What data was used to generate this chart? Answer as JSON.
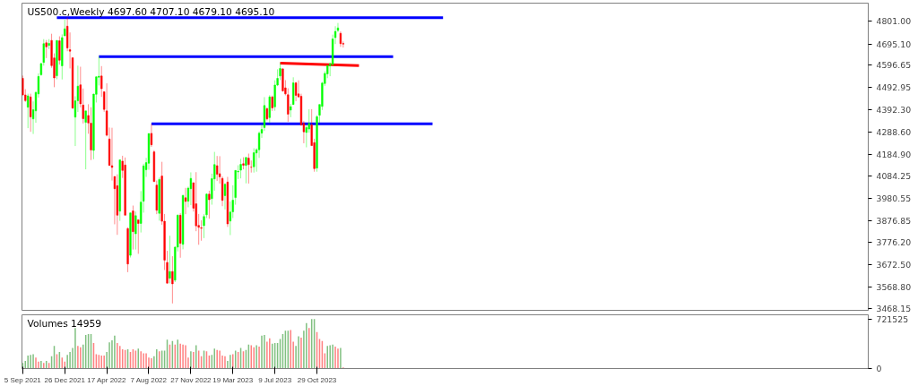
{
  "chart_data": [
    {
      "type": "candlestick",
      "title": "US500.c,Weekly  4697.60 4707.10 4679.10 4695.10",
      "tick_labels": "y",
      "x": [
        "2021-09-05",
        "2021-09-12",
        "2021-09-19",
        "2021-09-26",
        "2021-10-03",
        "2021-10-10",
        "2021-10-17",
        "2021-10-24",
        "2021-10-31",
        "2021-11-07",
        "2021-11-14",
        "2021-11-21",
        "2021-11-28",
        "2021-12-05",
        "2021-12-12",
        "2021-12-19",
        "2021-12-26",
        "2022-01-02",
        "2022-01-09",
        "2022-01-16",
        "2022-01-23",
        "2022-01-30",
        "2022-02-06",
        "2022-02-13",
        "2022-02-20",
        "2022-02-27",
        "2022-03-06",
        "2022-03-13",
        "2022-03-20",
        "2022-03-27",
        "2022-04-03",
        "2022-04-10",
        "2022-04-17",
        "2022-04-24",
        "2022-05-01",
        "2022-05-08",
        "2022-05-15",
        "2022-05-22",
        "2022-05-29",
        "2022-06-05",
        "2022-06-12",
        "2022-06-19",
        "2022-06-26",
        "2022-07-03",
        "2022-07-10",
        "2022-07-17",
        "2022-07-24",
        "2022-07-31",
        "2022-08-07",
        "2022-08-14",
        "2022-08-21",
        "2022-08-28",
        "2022-09-04",
        "2022-09-11",
        "2022-09-18",
        "2022-09-25",
        "2022-10-02",
        "2022-10-09",
        "2022-10-16",
        "2022-10-23",
        "2022-10-30",
        "2022-11-06",
        "2022-11-13",
        "2022-11-20",
        "2022-11-27",
        "2022-12-04",
        "2022-12-11",
        "2022-12-18",
        "2022-12-25",
        "2023-01-01",
        "2023-01-08",
        "2023-01-15",
        "2023-01-22",
        "2023-01-29",
        "2023-02-05",
        "2023-02-12",
        "2023-02-19",
        "2023-02-26",
        "2023-03-05",
        "2023-03-12",
        "2023-03-19",
        "2023-03-26",
        "2023-04-02",
        "2023-04-09",
        "2023-04-16",
        "2023-04-23",
        "2023-04-30",
        "2023-05-07",
        "2023-05-14",
        "2023-05-21",
        "2023-05-28",
        "2023-06-04",
        "2023-06-11",
        "2023-06-18",
        "2023-06-25",
        "2023-07-02",
        "2023-07-09",
        "2023-07-16",
        "2023-07-23",
        "2023-07-30",
        "2023-08-06",
        "2023-08-13",
        "2023-08-20",
        "2023-08-27",
        "2023-09-03",
        "2023-09-10",
        "2023-09-17",
        "2023-09-24",
        "2023-10-01",
        "2023-10-08",
        "2023-10-15",
        "2023-10-22",
        "2023-10-29",
        "2023-11-05",
        "2023-11-12",
        "2023-11-19",
        "2023-11-26",
        "2023-12-03",
        "2023-12-10",
        "2023-12-17",
        "2023-12-24",
        "2023-12-31",
        "2024-01-07"
      ],
      "ohlc": [
        [
          4536,
          4549,
          4457,
          4459
        ],
        [
          4459,
          4486,
          4427,
          4433
        ],
        [
          4402,
          4465,
          4305,
          4455
        ],
        [
          4450,
          4465,
          4288,
          4357
        ],
        [
          4348,
          4429,
          4278,
          4391
        ],
        [
          4385,
          4475,
          4330,
          4471
        ],
        [
          4464,
          4559,
          4447,
          4545
        ],
        [
          4553,
          4608,
          4548,
          4605
        ],
        [
          4610,
          4718,
          4595,
          4697
        ],
        [
          4701,
          4714,
          4630,
          4682
        ],
        [
          4689,
          4718,
          4672,
          4698
        ],
        [
          4712,
          4743,
          4585,
          4595
        ],
        [
          4631,
          4652,
          4495,
          4538
        ],
        [
          4548,
          4713,
          4532,
          4712
        ],
        [
          4710,
          4731,
          4600,
          4620
        ],
        [
          4594,
          4740,
          4531,
          4725
        ],
        [
          4733,
          4808,
          4733,
          4766
        ],
        [
          4778,
          4818,
          4662,
          4677
        ],
        [
          4669,
          4749,
          4582,
          4662
        ],
        [
          4632,
          4632,
          4395,
          4398
        ],
        [
          4356,
          4453,
          4222,
          4432
        ],
        [
          4432,
          4595,
          4380,
          4500
        ],
        [
          4506,
          4590,
          4401,
          4418
        ],
        [
          4412,
          4489,
          4327,
          4349
        ],
        [
          4332,
          4385,
          4114,
          4385
        ],
        [
          4364,
          4416,
          4279,
          4329
        ],
        [
          4328,
          4402,
          4157,
          4204
        ],
        [
          4202,
          4465,
          4161,
          4463
        ],
        [
          4462,
          4546,
          4424,
          4543
        ],
        [
          4541,
          4637,
          4503,
          4546
        ],
        [
          4547,
          4593,
          4450,
          4488
        ],
        [
          4474,
          4475,
          4381,
          4392
        ],
        [
          4385,
          4513,
          4267,
          4272
        ],
        [
          4255,
          4308,
          4132,
          4132
        ],
        [
          4131,
          4307,
          4062,
          4123
        ],
        [
          4081,
          4081,
          3859,
          4024
        ],
        [
          4038,
          4091,
          3810,
          3901
        ],
        [
          3920,
          4159,
          3875,
          4158
        ],
        [
          4152,
          4177,
          4074,
          4109
        ],
        [
          4134,
          4169,
          3901,
          3901
        ],
        [
          3839,
          3845,
          3637,
          3675
        ],
        [
          3715,
          3913,
          3705,
          3912
        ],
        [
          3921,
          3946,
          3742,
          3825
        ],
        [
          3815,
          3918,
          3742,
          3899
        ],
        [
          3880,
          3880,
          3722,
          3863
        ],
        [
          3863,
          4013,
          3821,
          3962
        ],
        [
          3966,
          4140,
          3913,
          4130
        ],
        [
          4112,
          4167,
          4079,
          4145
        ],
        [
          4142,
          4280,
          4112,
          4280
        ],
        [
          4281,
          4325,
          4218,
          4228
        ],
        [
          4195,
          4203,
          4057,
          4057
        ],
        [
          4041,
          4062,
          3906,
          3924
        ],
        [
          3910,
          4076,
          3876,
          4067
        ],
        [
          4083,
          4149,
          3857,
          3873
        ],
        [
          3873,
          3907,
          3647,
          3693
        ],
        [
          3682,
          3736,
          3584,
          3586
        ],
        [
          3609,
          3806,
          3585,
          3640
        ],
        [
          3640,
          3711,
          3492,
          3583
        ],
        [
          3600,
          3758,
          3591,
          3753
        ],
        [
          3753,
          3905,
          3733,
          3901
        ],
        [
          3901,
          3911,
          3704,
          3771
        ],
        [
          3766,
          3996,
          3743,
          3993
        ],
        [
          3982,
          4028,
          3906,
          3965
        ],
        [
          3966,
          4034,
          3938,
          4027
        ],
        [
          4024,
          4100,
          3948,
          4072
        ],
        [
          4052,
          4052,
          3918,
          3934
        ],
        [
          3954,
          4101,
          3827,
          3852
        ],
        [
          3854,
          3907,
          3764,
          3845
        ],
        [
          3843,
          3878,
          3783,
          3840
        ],
        [
          3853,
          3906,
          3795,
          3895
        ],
        [
          3903,
          4003,
          3888,
          3999
        ],
        [
          3999,
          4015,
          3885,
          3973
        ],
        [
          3978,
          4094,
          3950,
          4071
        ],
        [
          4070,
          4195,
          4015,
          4136
        ],
        [
          4131,
          4176,
          4060,
          4091
        ],
        [
          4094,
          4175,
          4048,
          4079
        ],
        [
          4072,
          4081,
          3943,
          3970
        ],
        [
          3992,
          4049,
          3928,
          4045
        ],
        [
          4055,
          4079,
          3847,
          3861
        ],
        [
          3874,
          3965,
          3809,
          3916
        ],
        [
          3917,
          4040,
          3888,
          3971
        ],
        [
          3983,
          4110,
          3950,
          4109
        ],
        [
          4102,
          4133,
          4069,
          4105
        ],
        [
          4110,
          4163,
          4072,
          4137
        ],
        [
          4140,
          4170,
          4114,
          4133
        ],
        [
          4132,
          4170,
          4049,
          4169
        ],
        [
          4166,
          4187,
          4048,
          4136
        ],
        [
          4124,
          4155,
          4099,
          4124
        ],
        [
          4126,
          4212,
          4099,
          4191
        ],
        [
          4190,
          4212,
          4103,
          4205
        ],
        [
          4205,
          4290,
          4167,
          4282
        ],
        [
          4282,
          4322,
          4260,
          4299
        ],
        [
          4308,
          4449,
          4292,
          4410
        ],
        [
          4396,
          4400,
          4341,
          4348
        ],
        [
          4354,
          4458,
          4328,
          4450
        ],
        [
          4450,
          4456,
          4385,
          4399
        ],
        [
          4404,
          4527,
          4386,
          4505
        ],
        [
          4505,
          4578,
          4500,
          4536
        ],
        [
          4547,
          4607,
          4528,
          4582
        ],
        [
          4580,
          4584,
          4474,
          4478
        ],
        [
          4492,
          4528,
          4457,
          4464
        ],
        [
          4460,
          4490,
          4335,
          4370
        ],
        [
          4389,
          4418,
          4356,
          4405
        ],
        [
          4415,
          4541,
          4413,
          4515
        ],
        [
          4515,
          4520,
          4430,
          4457
        ],
        [
          4464,
          4527,
          4448,
          4450
        ],
        [
          4453,
          4465,
          4316,
          4320
        ],
        [
          4327,
          4338,
          4235,
          4288
        ],
        [
          4285,
          4317,
          4216,
          4308
        ],
        [
          4301,
          4393,
          4284,
          4327
        ],
        [
          4320,
          4393,
          4223,
          4224
        ],
        [
          4238,
          4256,
          4103,
          4117
        ],
        [
          4120,
          4365,
          4103,
          4358
        ],
        [
          4365,
          4415,
          4329,
          4415
        ],
        [
          4406,
          4520,
          4389,
          4514
        ],
        [
          4512,
          4569,
          4501,
          4559
        ],
        [
          4557,
          4599,
          4537,
          4595
        ],
        [
          4594,
          4609,
          4546,
          4604
        ],
        [
          4600,
          4739,
          4593,
          4719
        ],
        [
          4725,
          4778,
          4695,
          4754
        ],
        [
          4758,
          4793,
          4751,
          4770
        ],
        [
          4745,
          4754,
          4682,
          4697
        ],
        [
          4697.6,
          4707.1,
          4679.1,
          4695.1
        ]
      ],
      "colors": [
        "#ff0000",
        "#ff0000",
        "#00ff00",
        "#ff0000",
        "#00ff00",
        "#00ff00",
        "#00ff00",
        "#00ff00",
        "#00ff00",
        "#ff0000",
        "#00ff00",
        "#ff0000",
        "#ff0000",
        "#00ff00",
        "#ff0000",
        "#00ff00",
        "#00ff00",
        "#ff0000",
        "#ff0000",
        "#ff0000",
        "#00ff00",
        "#00ff00",
        "#ff0000",
        "#ff0000",
        "#00ff00",
        "#ff0000",
        "#ff0000",
        "#00ff00",
        "#00ff00",
        "#00ff00",
        "#ff0000",
        "#ff0000",
        "#ff0000",
        "#ff0000",
        "#ff0000",
        "#ff0000",
        "#ff0000",
        "#00ff00",
        "#ff0000",
        "#ff0000",
        "#ff0000",
        "#00ff00",
        "#ff0000",
        "#00ff00",
        "#ff0000",
        "#00ff00",
        "#00ff00",
        "#00ff00",
        "#00ff00",
        "#ff0000",
        "#ff0000",
        "#ff0000",
        "#00ff00",
        "#ff0000",
        "#ff0000",
        "#ff0000",
        "#00ff00",
        "#ff0000",
        "#00ff00",
        "#00ff00",
        "#ff0000",
        "#00ff00",
        "#ff0000",
        "#00ff00",
        "#00ff00",
        "#ff0000",
        "#ff0000",
        "#ff0000",
        "#ff0000",
        "#00ff00",
        "#00ff00",
        "#ff0000",
        "#00ff00",
        "#00ff00",
        "#ff0000",
        "#ff0000",
        "#ff0000",
        "#00ff00",
        "#ff0000",
        "#00ff00",
        "#00ff00",
        "#00ff00",
        "#00ff00",
        "#00ff00",
        "#ff0000",
        "#00ff00",
        "#ff0000",
        "#ff0000",
        "#00ff00",
        "#00ff00",
        "#00ff00",
        "#00ff00",
        "#00ff00",
        "#ff0000",
        "#00ff00",
        "#ff0000",
        "#00ff00",
        "#00ff00",
        "#00ff00",
        "#ff0000",
        "#ff0000",
        "#ff0000",
        "#00ff00",
        "#00ff00",
        "#ff0000",
        "#ff0000",
        "#ff0000",
        "#ff0000",
        "#00ff00",
        "#00ff00",
        "#ff0000",
        "#ff0000",
        "#00ff00",
        "#00ff00",
        "#00ff00",
        "#00ff00",
        "#00ff00",
        "#00ff00",
        "#00ff00",
        "#00ff00",
        "#00ff00",
        "#ff0000",
        "#ff0000"
      ],
      "series": [
        {
          "type": "line",
          "color": "#0000ff",
          "x": [
            "2021-12-05",
            "2024-09-29"
          ],
          "values": [
            4818,
            4818
          ]
        },
        {
          "type": "line",
          "color": "#0000ff",
          "x": [
            "2022-03-27",
            "2024-05-19"
          ],
          "values": [
            4637,
            4637
          ]
        },
        {
          "type": "line",
          "color": "#0000ff",
          "x": [
            "2022-08-14",
            "2024-09-01"
          ],
          "values": [
            4325,
            4325
          ]
        },
        {
          "type": "line",
          "color": "#ff0000",
          "x": [
            "2023-07-23",
            "2024-02-18"
          ],
          "values": [
            4607,
            4595
          ]
        }
      ],
      "xlim": [
        "2021-09-03",
        "2027-11-06"
      ],
      "ylim": [
        3460,
        4885
      ],
      "yticks": [
        {
          "value": 4801,
          "label": "4801.00"
        },
        {
          "value": 4695.1,
          "label": "4695.10"
        },
        {
          "value": 4596.65,
          "label": "4596.65"
        },
        {
          "value": 4492.95,
          "label": "4492.95"
        },
        {
          "value": 4392.3,
          "label": "4392.30"
        },
        {
          "value": 4288.6,
          "label": "4288.60"
        },
        {
          "value": 4184.9,
          "label": "4184.90"
        },
        {
          "value": 4084.25,
          "label": "4084.25"
        },
        {
          "value": 3980.55,
          "label": "3980.55"
        },
        {
          "value": 3876.85,
          "label": "3876.85"
        },
        {
          "value": 3776.2,
          "label": "3776.20"
        },
        {
          "value": 3672.5,
          "label": "3672.50"
        },
        {
          "value": 3568.8,
          "label": "3568.80"
        },
        {
          "value": 3468.15,
          "label": "3468.15"
        }
      ]
    },
    {
      "type": "bar",
      "title": "Volumes 14959",
      "x": [
        "2021-09-05",
        "2021-09-12",
        "2021-09-19",
        "2021-09-26",
        "2021-10-03",
        "2021-10-10",
        "2021-10-17",
        "2021-10-24",
        "2021-10-31",
        "2021-11-07",
        "2021-11-14",
        "2021-11-21",
        "2021-11-28",
        "2021-12-05",
        "2021-12-12",
        "2021-12-19",
        "2021-12-26",
        "2022-01-02",
        "2022-01-09",
        "2022-01-16",
        "2022-01-23",
        "2022-01-30",
        "2022-02-06",
        "2022-02-13",
        "2022-02-20",
        "2022-02-27",
        "2022-03-06",
        "2022-03-13",
        "2022-03-20",
        "2022-03-27",
        "2022-04-03",
        "2022-04-10",
        "2022-04-17",
        "2022-04-24",
        "2022-05-01",
        "2022-05-08",
        "2022-05-15",
        "2022-05-22",
        "2022-05-29",
        "2022-06-05",
        "2022-06-12",
        "2022-06-19",
        "2022-06-26",
        "2022-07-03",
        "2022-07-10",
        "2022-07-17",
        "2022-07-24",
        "2022-07-31",
        "2022-08-07",
        "2022-08-14",
        "2022-08-21",
        "2022-08-28",
        "2022-09-04",
        "2022-09-11",
        "2022-09-18",
        "2022-09-25",
        "2022-10-02",
        "2022-10-09",
        "2022-10-16",
        "2022-10-23",
        "2022-10-30",
        "2022-11-06",
        "2022-11-13",
        "2022-11-20",
        "2022-11-27",
        "2022-12-04",
        "2022-12-11",
        "2022-12-18",
        "2022-12-25",
        "2023-01-01",
        "2023-01-08",
        "2023-01-15",
        "2023-01-22",
        "2023-01-29",
        "2023-02-05",
        "2023-02-12",
        "2023-02-19",
        "2023-02-26",
        "2023-03-05",
        "2023-03-12",
        "2023-03-19",
        "2023-03-26",
        "2023-04-02",
        "2023-04-09",
        "2023-04-16",
        "2023-04-23",
        "2023-04-30",
        "2023-05-07",
        "2023-05-14",
        "2023-05-21",
        "2023-05-28",
        "2023-06-04",
        "2023-06-11",
        "2023-06-18",
        "2023-06-25",
        "2023-07-02",
        "2023-07-09",
        "2023-07-16",
        "2023-07-23",
        "2023-07-30",
        "2023-08-06",
        "2023-08-13",
        "2023-08-20",
        "2023-08-27",
        "2023-09-03",
        "2023-09-10",
        "2023-09-17",
        "2023-09-24",
        "2023-10-01",
        "2023-10-08",
        "2023-10-15",
        "2023-10-22",
        "2023-10-29",
        "2023-11-05",
        "2023-11-12",
        "2023-11-19",
        "2023-11-26",
        "2023-12-03",
        "2023-12-10",
        "2023-12-17",
        "2023-12-24",
        "2023-12-31",
        "2024-01-07"
      ],
      "values": [
        80000,
        110000,
        190000,
        200000,
        210000,
        160000,
        100000,
        110000,
        80000,
        110000,
        80000,
        180000,
        330000,
        210000,
        240000,
        160000,
        100000,
        200000,
        240000,
        300000,
        590000,
        330000,
        310000,
        350000,
        490000,
        500000,
        500000,
        370000,
        210000,
        200000,
        190000,
        190000,
        240000,
        380000,
        410000,
        480000,
        370000,
        330000,
        280000,
        270000,
        280000,
        240000,
        280000,
        260000,
        290000,
        250000,
        220000,
        220000,
        160000,
        150000,
        180000,
        280000,
        250000,
        260000,
        260000,
        420000,
        350000,
        400000,
        350000,
        420000,
        360000,
        350000,
        340000,
        160000,
        250000,
        240000,
        340000,
        260000,
        180000,
        260000,
        250000,
        190000,
        200000,
        290000,
        270000,
        260000,
        190000,
        180000,
        110000,
        200000,
        210000,
        260000,
        240000,
        300000,
        250000,
        270000,
        350000,
        340000,
        310000,
        340000,
        320000,
        480000,
        490000,
        390000,
        440000,
        360000,
        370000,
        370000,
        430000,
        500000,
        550000,
        550000,
        560000,
        390000,
        330000,
        470000,
        450000,
        550000,
        660000,
        590000,
        720000,
        720000,
        530000,
        430000,
        400000,
        220000,
        330000,
        340000,
        350000,
        320000,
        290000,
        300000,
        14959
      ],
      "colors": [
        "#80c080",
        "#80c080",
        "#80c080",
        "#80c080",
        "#80c080",
        "#ff8080",
        "#ff8080",
        "#80c080",
        "#ff8080",
        "#80c080",
        "#ff8080",
        "#80c080",
        "#80c080",
        "#ff8080",
        "#80c080",
        "#ff8080",
        "#ff8080",
        "#80c080",
        "#80c080",
        "#80c080",
        "#80c080",
        "#ff8080",
        "#ff8080",
        "#80c080",
        "#80c080",
        "#80c080",
        "#80c080",
        "#ff8080",
        "#ff8080",
        "#ff8080",
        "#ff8080",
        "#ff8080",
        "#80c080",
        "#80c080",
        "#80c080",
        "#80c080",
        "#ff8080",
        "#ff8080",
        "#ff8080",
        "#ff8080",
        "#80c080",
        "#ff8080",
        "#ff8080",
        "#ff8080",
        "#80c080",
        "#ff8080",
        "#ff8080",
        "#ff8080",
        "#ff8080",
        "#ff8080",
        "#80c080",
        "#80c080",
        "#ff8080",
        "#80c080",
        "#80c080",
        "#80c080",
        "#ff8080",
        "#80c080",
        "#ff8080",
        "#80c080",
        "#ff8080",
        "#ff8080",
        "#ff8080",
        "#ff8080",
        "#80c080",
        "#ff8080",
        "#80c080",
        "#ff8080",
        "#ff8080",
        "#80c080",
        "#ff8080",
        "#ff8080",
        "#80c080",
        "#80c080",
        "#ff8080",
        "#ff8080",
        "#ff8080",
        "#ff8080",
        "#80c080",
        "#80c080",
        "#ff8080",
        "#80c080",
        "#ff8080",
        "#80c080",
        "#ff8080",
        "#80c080",
        "#80c080",
        "#ff8080",
        "#ff8080",
        "#80c080",
        "#ff8080",
        "#80c080",
        "#80c080",
        "#ff8080",
        "#ff8080",
        "#80c080",
        "#80c080",
        "#80c080",
        "#80c080",
        "#80c080",
        "#80c080",
        "#80c080",
        "#ff8080",
        "#ff8080",
        "#80c080",
        "#80c080",
        "#ff8080",
        "#80c080",
        "#80c080",
        "#ff8080",
        "#80c080",
        "#80c080",
        "#ff8080",
        "#ff8080",
        "#ff8080",
        "#ff8080",
        "#80c080",
        "#80c080",
        "#80c080",
        "#ff8080",
        "#ff8080",
        "#80c080",
        "#ff8080"
      ],
      "xlim": [
        "2021-09-03",
        "2027-11-06"
      ],
      "ylim": [
        0,
        781650
      ],
      "yticks": [
        0,
        721525
      ],
      "xticks": [
        {
          "value": "2021-09-05",
          "label": "5 Sep 2021"
        },
        {
          "value": "2021-12-26",
          "label": "26 Dec 2021"
        },
        {
          "value": "2022-04-17",
          "label": "17 Apr 2022"
        },
        {
          "value": "2022-08-07",
          "label": "7 Aug 2022"
        },
        {
          "value": "2022-11-27",
          "label": "27 Nov 2022"
        },
        {
          "value": "2023-03-19",
          "label": "19 Mar 2023"
        },
        {
          "value": "2023-07-09",
          "label": "9 Jul 2023"
        },
        {
          "value": "2023-10-29",
          "label": "29 Oct 2023"
        }
      ]
    }
  ]
}
